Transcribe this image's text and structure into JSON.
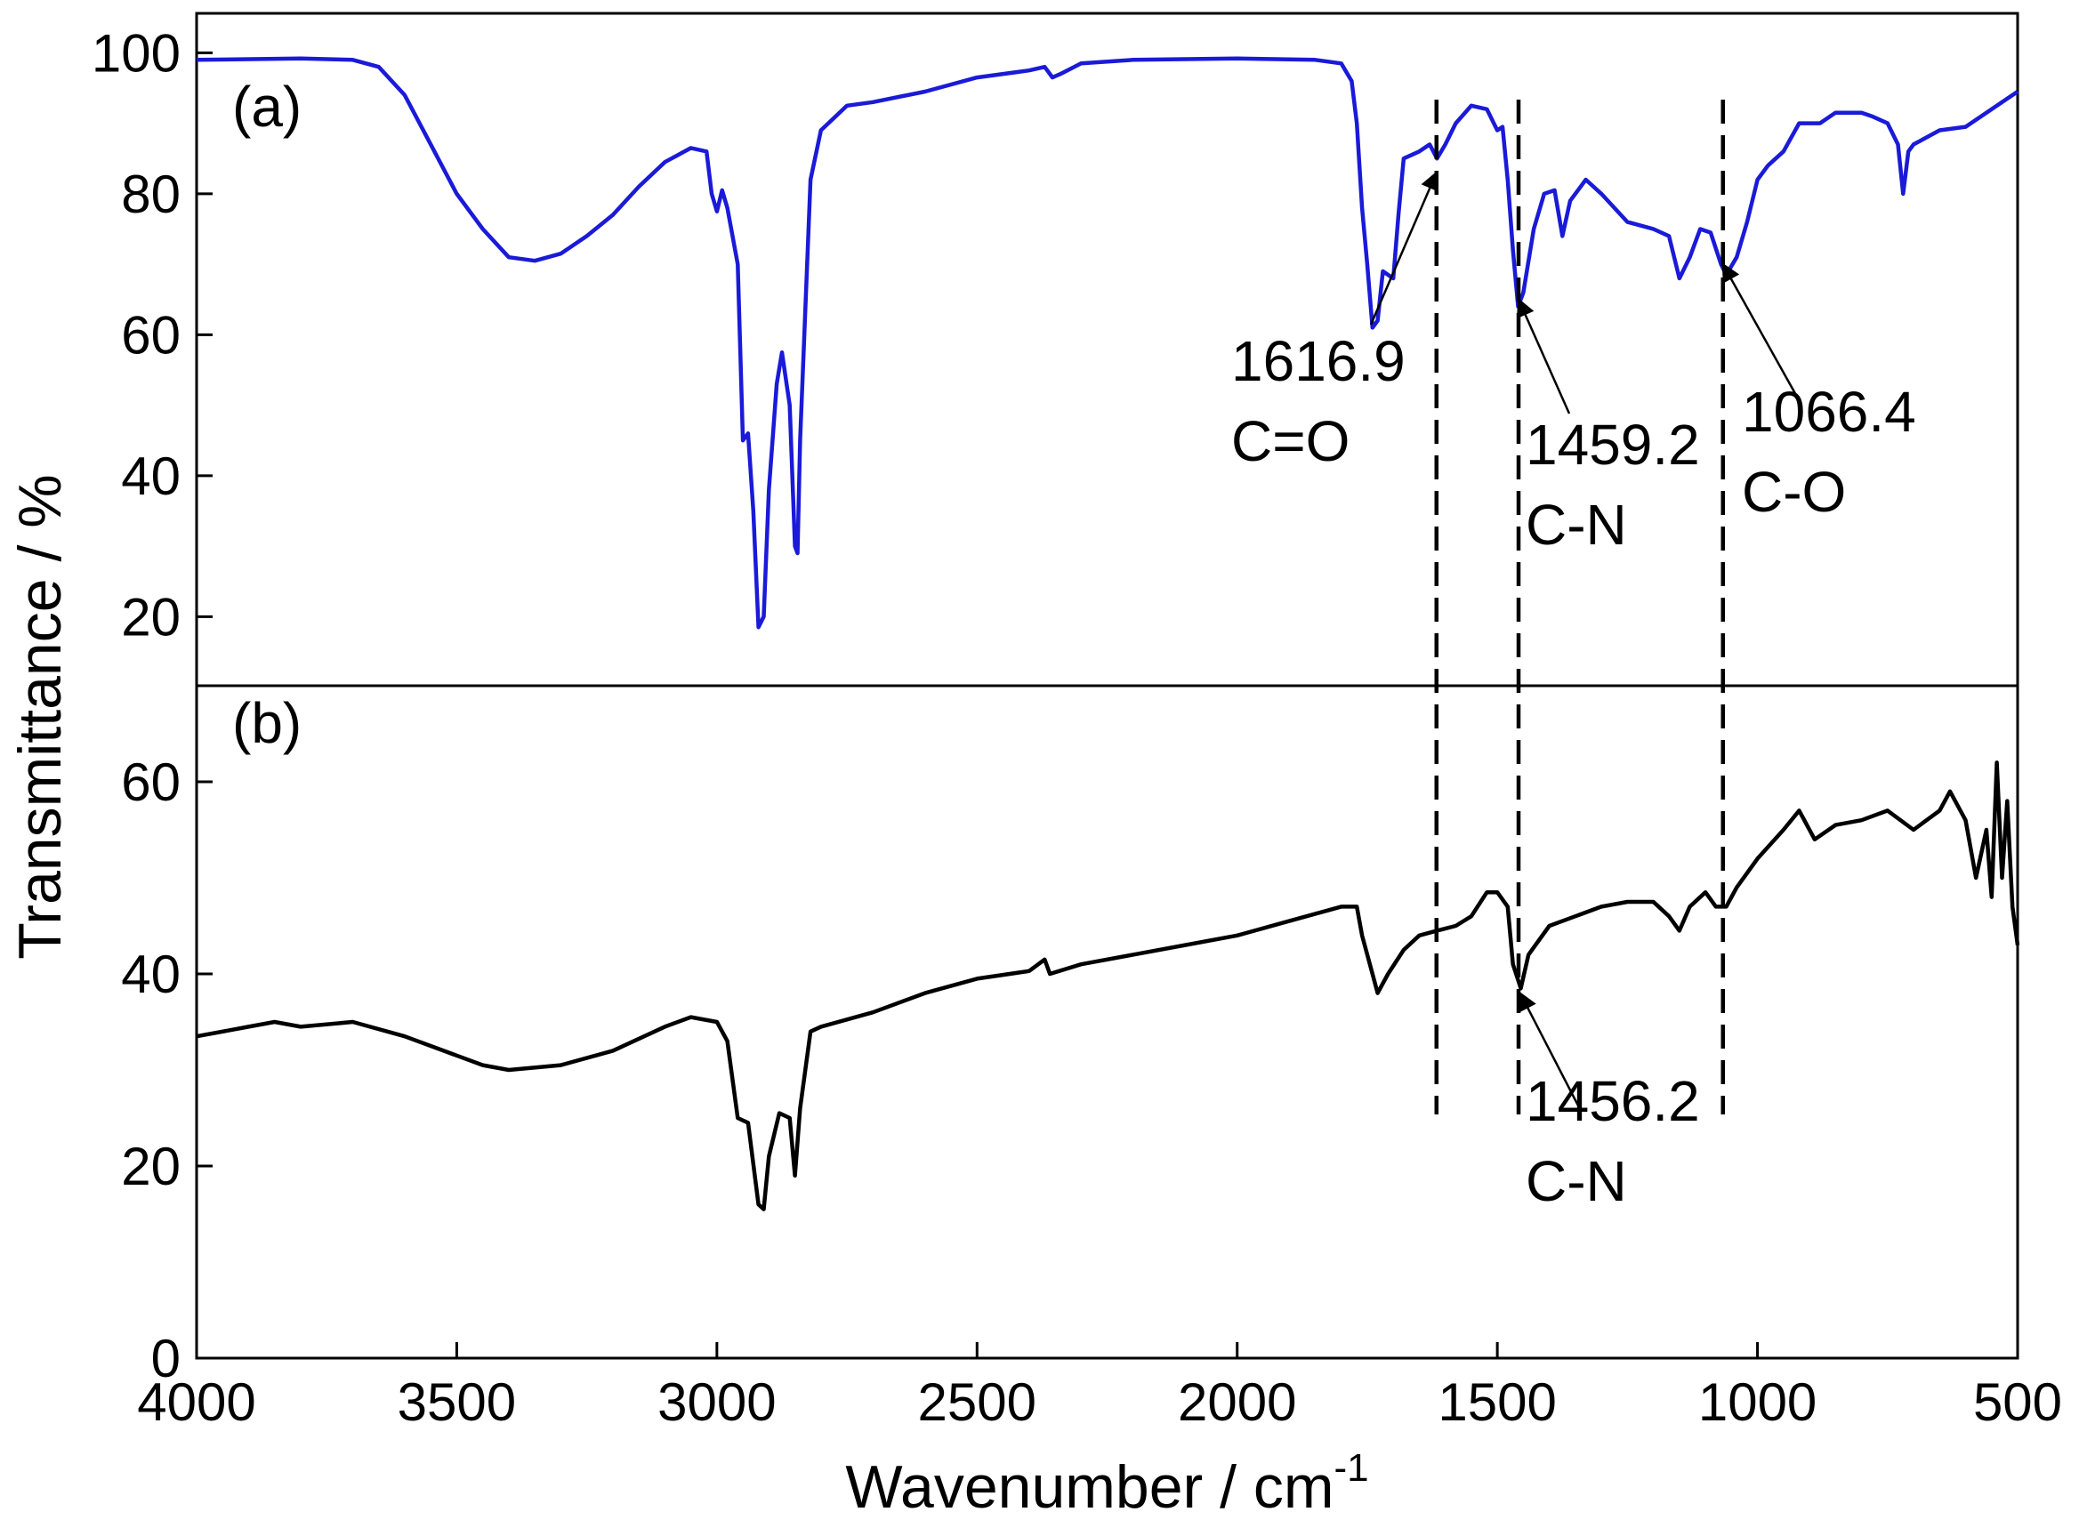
{
  "chart_data": [
    {
      "type": "line",
      "ylabel": "Transmittance / %",
      "panel_label": "(a)",
      "xlim": [
        4000,
        500
      ],
      "ylim": [
        10.2,
        105.6
      ],
      "yticks": [
        20,
        40,
        60,
        80,
        100
      ],
      "x": [
        4000,
        3800,
        3700,
        3650,
        3600,
        3550,
        3500,
        3450,
        3400,
        3350,
        3300,
        3250,
        3200,
        3150,
        3100,
        3050,
        3020,
        3010,
        3000,
        2990,
        2980,
        2960,
        2950,
        2940,
        2930,
        2920,
        2910,
        2900,
        2885,
        2875,
        2860,
        2850,
        2845,
        2840,
        2820,
        2800,
        2750,
        2700,
        2600,
        2500,
        2400,
        2370,
        2355,
        2340,
        2300,
        2200,
        2000,
        1850,
        1800,
        1780,
        1770,
        1760,
        1750,
        1740,
        1730,
        1720,
        1700,
        1690,
        1680,
        1650,
        1630,
        1616,
        1600,
        1580,
        1550,
        1520,
        1500,
        1490,
        1480,
        1470,
        1460,
        1450,
        1430,
        1410,
        1390,
        1375,
        1360,
        1330,
        1300,
        1250,
        1200,
        1170,
        1150,
        1130,
        1110,
        1090,
        1070,
        1060,
        1040,
        1020,
        1000,
        980,
        950,
        920,
        880,
        850,
        800,
        780,
        750,
        730,
        720,
        710,
        700,
        650,
        600,
        550,
        500
      ],
      "series": [
        {
          "color": "#1a1ad8",
          "values": [
            99,
            99.2,
            99,
            98,
            94,
            87,
            80,
            75,
            71,
            70.5,
            71.5,
            74,
            77,
            81,
            84.5,
            86.5,
            86,
            80,
            77.5,
            80.5,
            78,
            70,
            45,
            46,
            35,
            18.5,
            20,
            38,
            53,
            57.5,
            50,
            30,
            29,
            45,
            82,
            89,
            92.5,
            93,
            94.5,
            96.5,
            97.5,
            98,
            96.5,
            97,
            98.5,
            99,
            99.2,
            99,
            98.5,
            96,
            90,
            78,
            70,
            61,
            62,
            69,
            68,
            77,
            85,
            86,
            87,
            85,
            87,
            90,
            92.5,
            92,
            89,
            89.5,
            82,
            72,
            64,
            66,
            75,
            80,
            80.5,
            74,
            79,
            82,
            80,
            76,
            75,
            74,
            68,
            71,
            75,
            74.5,
            70,
            68.5,
            71,
            76,
            82,
            84,
            86,
            90,
            90,
            91.5,
            91.5,
            91,
            90,
            87,
            80,
            86,
            87,
            89,
            89.5,
            92,
            94.5
          ]
        }
      ],
      "annotations": [
        {
          "label": "1616.9",
          "group": "C=O",
          "x": 1616.9,
          "y": 83
        },
        {
          "label": "1459.2",
          "group": "C-N",
          "x": 1459.2,
          "y": 65
        },
        {
          "label": "1066.4",
          "group": "C-O",
          "x": 1066.4,
          "y": 70
        }
      ]
    },
    {
      "type": "line",
      "panel_label": "(b)",
      "xlabel": {
        "text": "Wavenumber / cm",
        "superscript": "-1"
      },
      "xlim": [
        4000,
        500
      ],
      "xticks": [
        4000,
        3500,
        3000,
        2500,
        2000,
        1500,
        1000,
        500
      ],
      "ylim": [
        0,
        70
      ],
      "yticks": [
        0,
        20,
        40,
        60
      ],
      "x": [
        4000,
        3900,
        3850,
        3800,
        3700,
        3600,
        3500,
        3450,
        3400,
        3300,
        3200,
        3100,
        3050,
        3000,
        2980,
        2960,
        2940,
        2920,
        2910,
        2900,
        2880,
        2860,
        2850,
        2840,
        2820,
        2800,
        2700,
        2600,
        2500,
        2400,
        2370,
        2360,
        2300,
        2200,
        2100,
        2000,
        1900,
        1800,
        1770,
        1760,
        1740,
        1730,
        1710,
        1680,
        1650,
        1616,
        1580,
        1550,
        1520,
        1500,
        1480,
        1470,
        1455,
        1440,
        1400,
        1350,
        1300,
        1250,
        1200,
        1170,
        1150,
        1130,
        1100,
        1080,
        1060,
        1040,
        1000,
        950,
        920,
        890,
        850,
        800,
        750,
        700,
        650,
        630,
        600,
        580,
        560,
        550,
        540,
        530,
        520,
        510,
        500
      ],
      "series": [
        {
          "color": "#000000",
          "values": [
            33.5,
            34.5,
            35,
            34.5,
            35,
            33.5,
            31.5,
            30.5,
            30,
            30.5,
            32,
            34.5,
            35.5,
            35,
            33,
            25,
            24.5,
            16,
            15.5,
            21,
            25.5,
            25,
            19,
            26,
            34,
            34.5,
            36,
            38,
            39.5,
            40.3,
            41.5,
            40,
            41,
            42,
            43,
            44,
            45.5,
            47,
            47,
            44,
            40,
            38,
            40,
            42.5,
            44,
            44.5,
            45,
            46,
            48.5,
            48.5,
            47,
            41,
            38.5,
            42,
            45,
            46,
            47,
            47.5,
            47.5,
            46,
            44.5,
            47,
            48.5,
            47,
            47,
            49,
            52,
            55,
            57,
            54,
            55.5,
            56,
            57,
            55,
            57,
            59,
            56,
            50,
            55,
            48,
            62,
            50,
            58,
            47,
            43
          ]
        }
      ],
      "annotations": [
        {
          "label": "1456.2",
          "group": "C-N",
          "x": 1456.2,
          "y": 38
        }
      ]
    }
  ]
}
